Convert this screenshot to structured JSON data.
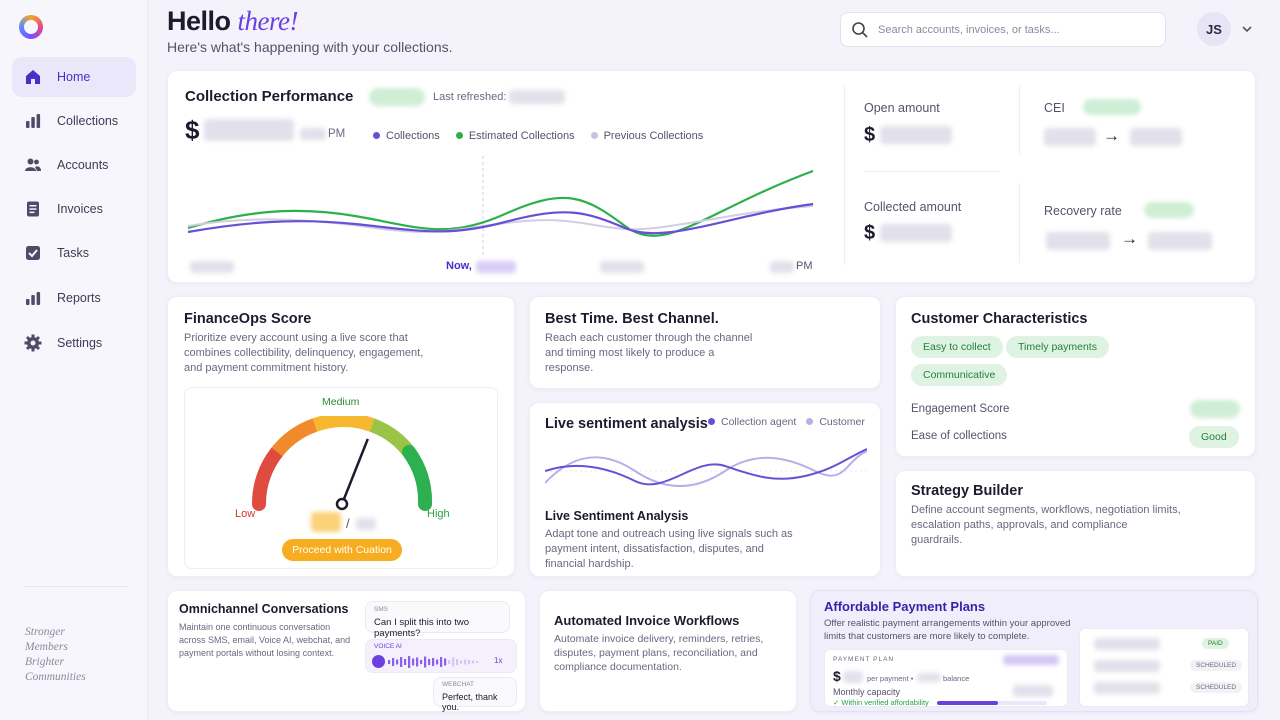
{
  "colors": {
    "accent": "#6b3fe0",
    "collections": "#6a4fd6",
    "estimated": "#2bb04a",
    "previous": "#c7c3dc"
  },
  "sidebar": {
    "items": [
      {
        "label": "Home",
        "icon": "home-icon"
      },
      {
        "label": "Collections",
        "icon": "bar-chart-icon"
      },
      {
        "label": "Accounts",
        "icon": "users-icon"
      },
      {
        "label": "Invoices",
        "icon": "document-icon"
      },
      {
        "label": "Tasks",
        "icon": "checkbox-icon"
      },
      {
        "label": "Reports",
        "icon": "reports-icon"
      },
      {
        "label": "Settings",
        "icon": "gear-icon"
      }
    ],
    "tagline": [
      "Stronger",
      "Members",
      "Brighter",
      "Communities"
    ]
  },
  "header": {
    "greeting": "Hello",
    "greeting_accent": "there!",
    "subtitle": "Here's what's happening with your collections.",
    "search_placeholder": "Search accounts, invoices, or tasks...",
    "avatar_initials": "JS"
  },
  "performance": {
    "title": "Collection Performance",
    "last_refreshed_label": "Last refreshed:",
    "amount_prefix": "$",
    "amount_suffix": "PM",
    "legend": [
      "Collections",
      "Estimated Collections",
      "Previous Collections"
    ],
    "now_label": "Now,",
    "x_end_label": "PM"
  },
  "metrics": {
    "open_amount": "Open amount",
    "collected_amount": "Collected amount",
    "cei": "CEI",
    "recovery_rate": "Recovery rate",
    "currency": "$",
    "arrow": "→"
  },
  "financeops": {
    "title": "FinanceOps Score",
    "desc": "Prioritize every account using a live score that combines collectibility, delinquency, engagement, and payment commitment history.",
    "gauge_top": "Medium",
    "gauge_low": "Low",
    "gauge_high": "High",
    "slash": "/",
    "button": "Proceed with Cuation",
    "score_fraction": 0.62
  },
  "best_time": {
    "title": "Best Time. Best Channel.",
    "desc": "Reach each customer through the channel and timing most likely to produce a response."
  },
  "sentiment": {
    "title": "Live sentiment analysis",
    "legend": [
      "Collection agent",
      "Customer"
    ],
    "subtitle": "Live Sentiment Analysis",
    "desc": "Adapt tone and outreach using live signals such as payment intent, dissatisfaction, disputes, and financial hardship."
  },
  "customer": {
    "title": "Customer Characteristics",
    "tags": [
      "Easy to collect",
      "Timely payments",
      "Communicative"
    ],
    "engagement_label": "Engagement Score",
    "ease_label": "Ease of collections",
    "ease_value": "Good"
  },
  "strategy": {
    "title": "Strategy Builder",
    "desc": "Define account segments, workflows, negotiation limits, escalation paths, approvals, and compliance guardrails."
  },
  "omnichannel": {
    "title": "Omnichannel Conversations",
    "desc": "Maintain one continuous conversation across SMS, email, Voice AI, webchat, and payment portals without losing context.",
    "sms_tag": "SMS",
    "sms_text": "Can I split this into two payments?",
    "voice_tag": "VOICE AI",
    "voice_speed": "1x",
    "webchat_tag": "WEBCHAT",
    "webchat_text": "Perfect, thank you."
  },
  "invoice": {
    "title": "Automated Invoice Workflows",
    "desc": "Automate invoice delivery, reminders, retries, disputes, payment plans, reconciliation, and compliance documentation."
  },
  "payment_plans": {
    "title": "Affordable Payment Plans",
    "desc": "Offer realistic payment arrangements within your approved limits that customers are more likely to complete.",
    "plan_label": "PAYMENT PLAN",
    "currency": "$",
    "per_payment": "per payment •",
    "balance": "balance",
    "monthly_capacity": "Monthly capacity",
    "verified": "Within verified affordability",
    "verified_fraction": 0.55,
    "statuses": [
      "PAID",
      "SCHEDULED",
      "SCHEDULED"
    ]
  }
}
